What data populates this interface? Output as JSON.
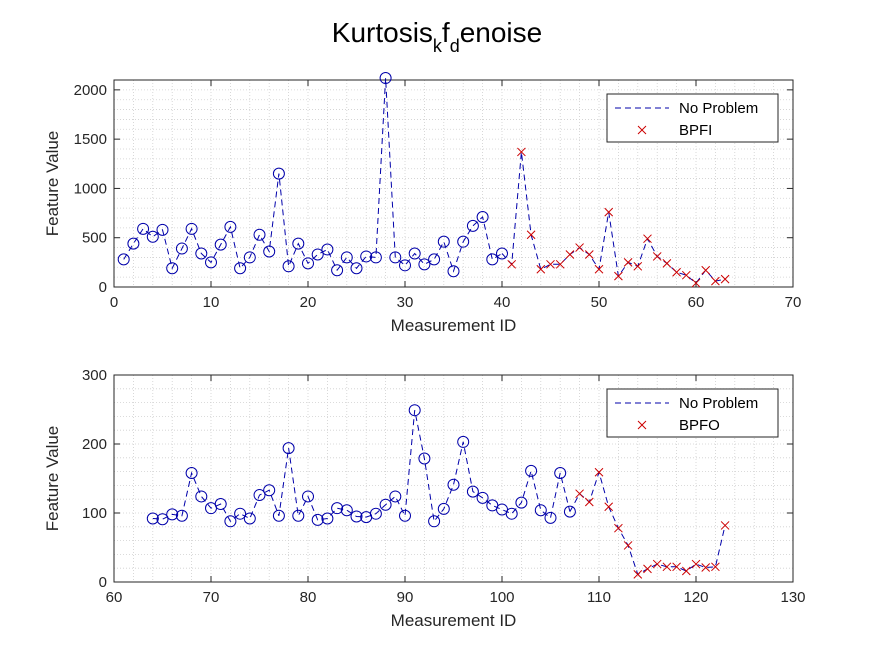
{
  "figure": {
    "title_parts": [
      "Kurtosis",
      "k",
      "f",
      "d",
      "enoise"
    ]
  },
  "colors": {
    "no_problem": "#0000aa",
    "fault": "#cc0000",
    "axes": "#262626",
    "grid": "#cfcfcf"
  },
  "chart_data": [
    {
      "type": "scatter",
      "xlabel": "Measurement ID",
      "ylabel": "Feature Value",
      "xlim": [
        0,
        70
      ],
      "ylim": [
        0,
        2100
      ],
      "xticks": [
        0,
        10,
        20,
        30,
        40,
        50,
        60,
        70
      ],
      "yticks": [
        0,
        500,
        1000,
        1500,
        2000
      ],
      "grid": "minor dotted",
      "legend_placement": "top-right",
      "series": [
        {
          "name": "No Problem",
          "style": "dashed line with circle markers",
          "x": [
            1,
            2,
            3,
            4,
            5,
            6,
            7,
            8,
            9,
            10,
            11,
            12,
            13,
            14,
            15,
            16,
            17,
            18,
            19,
            20,
            21,
            22,
            23,
            24,
            25,
            26,
            27,
            28,
            29,
            30,
            31,
            32,
            33,
            34,
            35,
            36,
            37,
            38,
            39,
            40
          ],
          "y": [
            280,
            440,
            590,
            510,
            580,
            190,
            390,
            590,
            340,
            250,
            430,
            610,
            190,
            300,
            530,
            360,
            1150,
            210,
            440,
            240,
            330,
            380,
            170,
            300,
            190,
            310,
            300,
            2120,
            300,
            220,
            340,
            230,
            280,
            460,
            160,
            460,
            620,
            710,
            280,
            340
          ]
        },
        {
          "name": "BPFI",
          "style": "dashed line with x markers",
          "x": [
            41,
            42,
            43,
            44,
            45,
            46,
            47,
            48,
            49,
            50,
            51,
            52,
            53,
            54,
            55,
            56,
            57,
            58,
            59,
            60,
            61,
            62,
            63
          ],
          "y": [
            230,
            1370,
            530,
            180,
            230,
            230,
            330,
            400,
            330,
            180,
            760,
            110,
            250,
            210,
            490,
            310,
            240,
            150,
            120,
            40,
            170,
            60,
            80
          ]
        }
      ],
      "legend_order": [
        "No Problem",
        "BPFI"
      ]
    },
    {
      "type": "scatter",
      "xlabel": "Measurement ID",
      "ylabel": "Feature Value",
      "xlim": [
        60,
        130
      ],
      "ylim": [
        0,
        300
      ],
      "xticks": [
        60,
        70,
        80,
        90,
        100,
        110,
        120,
        130
      ],
      "yticks": [
        0,
        100,
        200,
        300
      ],
      "grid": "minor dotted",
      "legend_placement": "top-right",
      "series": [
        {
          "name": "No Problem",
          "style": "dashed line with circle markers",
          "x": [
            64,
            65,
            66,
            67,
            68,
            69,
            70,
            71,
            72,
            73,
            74,
            75,
            76,
            77,
            78,
            79,
            80,
            81,
            82,
            83,
            84,
            85,
            86,
            87,
            88,
            89,
            90,
            91,
            92,
            93,
            94,
            95,
            96,
            97,
            98,
            99,
            100,
            101,
            102,
            103,
            104,
            105,
            106,
            107
          ],
          "y": [
            92,
            91,
            98,
            96,
            158,
            124,
            107,
            113,
            88,
            99,
            92,
            126,
            133,
            96,
            194,
            96,
            124,
            90,
            92,
            107,
            104,
            95,
            94,
            99,
            112,
            124,
            96,
            249,
            179,
            88,
            106,
            141,
            203,
            131,
            122,
            111,
            105,
            99,
            115,
            161,
            104,
            93,
            158,
            102
          ]
        },
        {
          "name": "BPFO",
          "style": "dashed line with x markers",
          "x": [
            108,
            109,
            110,
            111,
            112,
            113,
            114,
            115,
            116,
            117,
            118,
            119,
            120,
            121,
            122,
            123
          ],
          "y": [
            128,
            116,
            159,
            109,
            78,
            53,
            11,
            19,
            26,
            22,
            22,
            16,
            26,
            21,
            22,
            82
          ]
        }
      ],
      "legend_order": [
        "No Problem",
        "BPFO"
      ]
    }
  ]
}
